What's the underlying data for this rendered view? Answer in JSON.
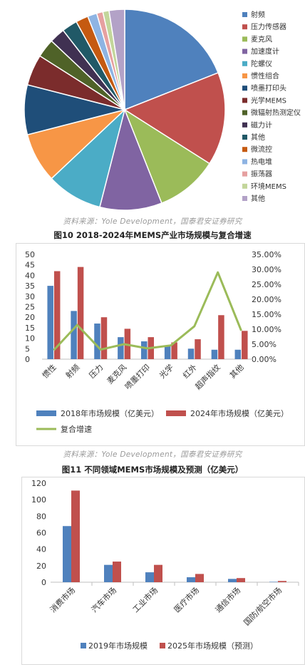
{
  "chart_data": [
    {
      "type": "pie",
      "title": "",
      "legend_position": "right",
      "slices": [
        {
          "label": "射频",
          "value": 19,
          "color": "#4f81bd"
        },
        {
          "label": "压力传感器",
          "value": 15,
          "color": "#c0504d"
        },
        {
          "label": "麦克风",
          "value": 10,
          "color": "#9bbb59"
        },
        {
          "label": "加速度计",
          "value": 10,
          "color": "#8064a2"
        },
        {
          "label": "陀螺仪",
          "value": 9,
          "color": "#4bacc6"
        },
        {
          "label": "惯性组合",
          "value": 8,
          "color": "#f79646"
        },
        {
          "label": "喷墨打印头",
          "value": 8,
          "color": "#1f4e79"
        },
        {
          "label": "光学MEMS",
          "value": 5,
          "color": "#7b2c2c"
        },
        {
          "label": "微辐射热测定仪",
          "value": 3,
          "color": "#4f6228"
        },
        {
          "label": "磁力计",
          "value": 2.5,
          "color": "#403152"
        },
        {
          "label": "其他",
          "value": 2.5,
          "color": "#215967"
        },
        {
          "label": "微流控",
          "value": 2,
          "color": "#c55a11"
        },
        {
          "label": "热电堆",
          "value": 1.5,
          "color": "#8eb4e3"
        },
        {
          "label": "振荡器",
          "value": 1,
          "color": "#e6a0a0"
        },
        {
          "label": "环境MEMS",
          "value": 1,
          "color": "#c3d69b"
        },
        {
          "label": "其他",
          "value": 2.5,
          "color": "#b3a2c7"
        }
      ]
    },
    {
      "type": "bar",
      "title": "图10   2018-2024年MEMS产业市场规模与复合增速",
      "categories": [
        "惯性",
        "射频",
        "压力",
        "麦克风",
        "喷墨打印",
        "光学",
        "红外",
        "超声指纹",
        "其他"
      ],
      "series": [
        {
          "name": "2018年市场规模（亿美元）",
          "values": [
            35,
            23,
            17,
            10.5,
            8.5,
            6.5,
            5,
            4.5,
            4.5
          ],
          "color": "#4f81bd",
          "axis": "left"
        },
        {
          "name": "2024年市场规模（亿美元）",
          "values": [
            42,
            44,
            20,
            14.5,
            10.5,
            8,
            9.5,
            21,
            13.5
          ],
          "color": "#c0504d",
          "axis": "left"
        },
        {
          "name": "复合增速",
          "type": "line",
          "values": [
            3.0,
            11.4,
            3.2,
            5.0,
            3.6,
            4.6,
            11.0,
            29.0,
            9.5
          ],
          "color": "#9bbb59",
          "axis": "right"
        }
      ],
      "ylim": [
        0,
        50
      ],
      "y_ticks": [
        0,
        5,
        10,
        15,
        20,
        25,
        30,
        35,
        40,
        45,
        50
      ],
      "y2lim": [
        0,
        35
      ],
      "y2_ticks": [
        "0.00%",
        "5.00%",
        "10.00%",
        "15.00%",
        "20.00%",
        "25.00%",
        "30.00%",
        "35.00%"
      ],
      "legend_position": "bottom"
    },
    {
      "type": "bar",
      "title": "图11   不同领域MEMS市场规模及预测（亿美元）",
      "categories": [
        "消费市场",
        "汽车市场",
        "工业市场",
        "医疗市场",
        "通信市场",
        "国防/航空市场"
      ],
      "series": [
        {
          "name": "2019年市场规模",
          "values": [
            68,
            21,
            12,
            6,
            4,
            0.5
          ],
          "color": "#4f81bd"
        },
        {
          "name": "2025年市场规模（预测）",
          "values": [
            111,
            25,
            21,
            10,
            5,
            1.5
          ],
          "color": "#c0504d"
        }
      ],
      "ylim": [
        0,
        120
      ],
      "y_ticks": [
        0,
        20,
        40,
        60,
        80,
        100,
        120
      ],
      "legend_position": "bottom"
    }
  ],
  "text": {
    "source1": "资料来源：Yole Development，国泰君安证券研究",
    "source2": "资料来源：Yole Development，国泰君安证券研究",
    "fig10_title": "图10   2018-2024年MEMS产业市场规模与复合增速",
    "fig11_title": "图11   不同领域MEMS市场规模及预测（亿美元）"
  }
}
